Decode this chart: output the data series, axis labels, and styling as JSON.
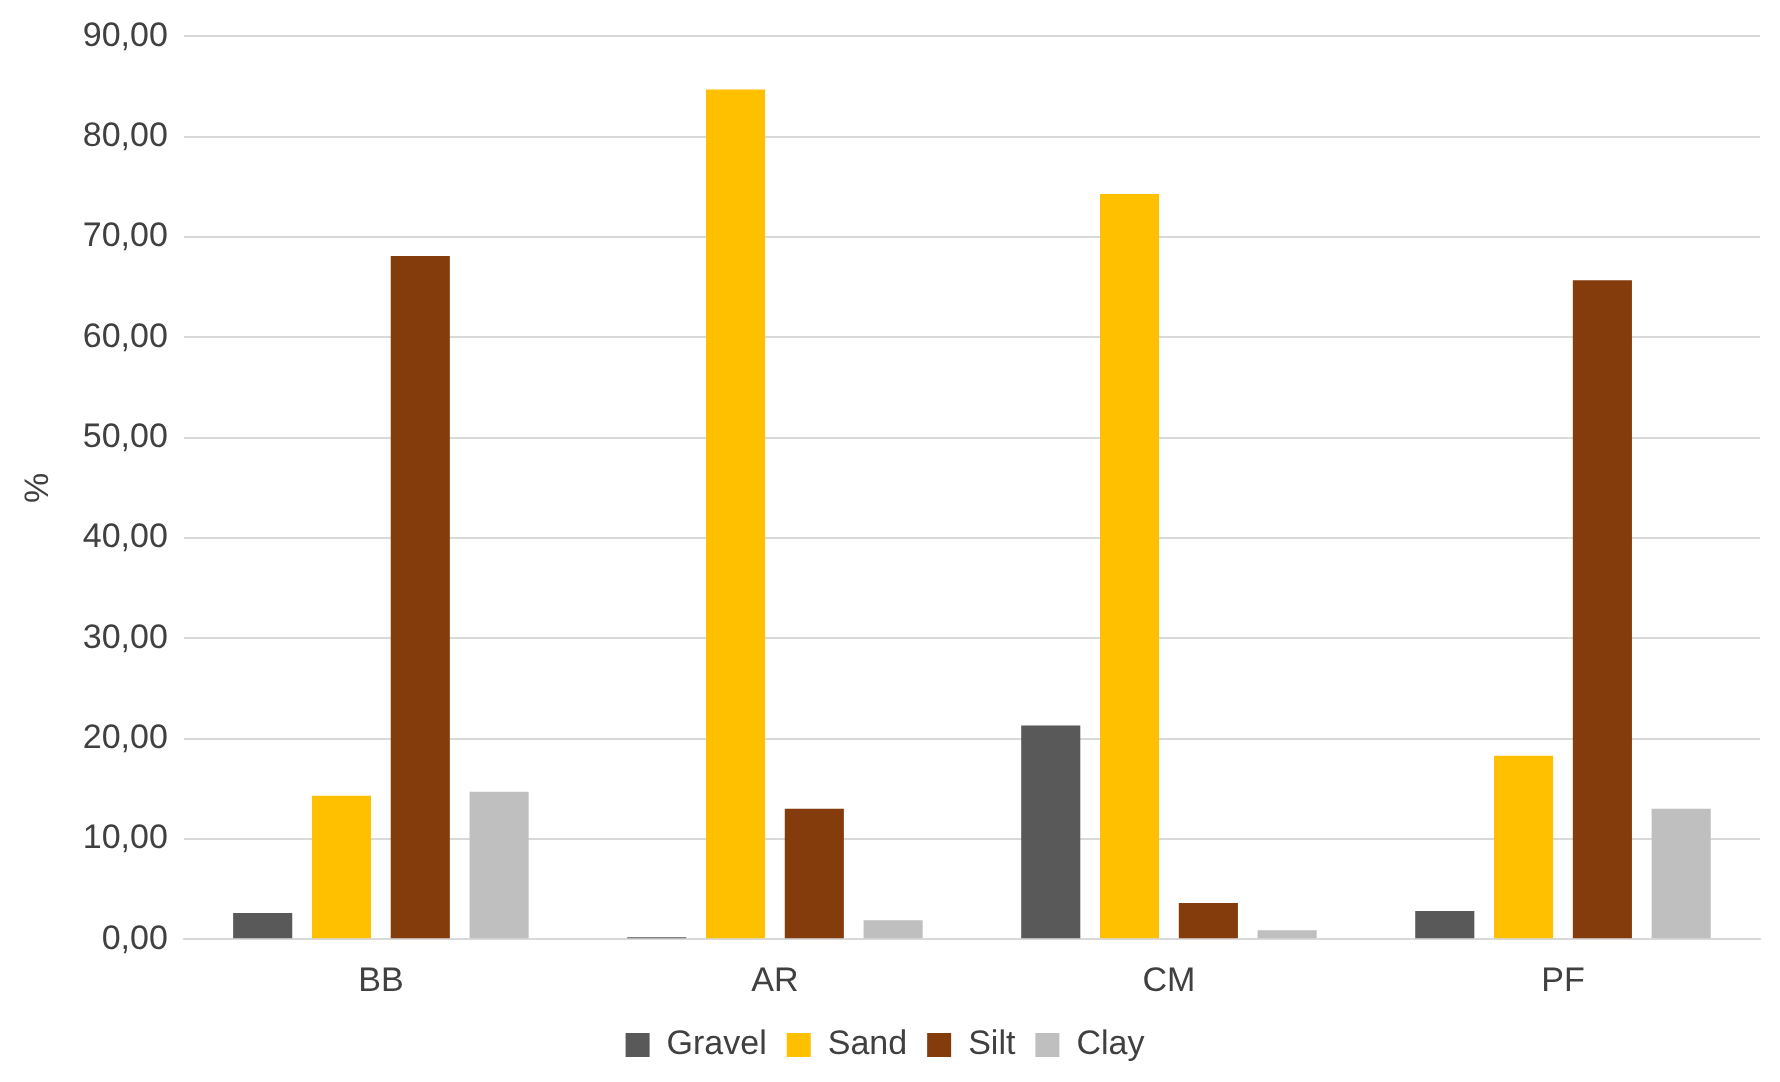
{
  "chart_data": {
    "type": "bar",
    "ylabel": "%",
    "categories": [
      "BB",
      "AR",
      "CM",
      "PF"
    ],
    "series": [
      {
        "name": "Gravel",
        "color": "#595959",
        "values": [
          2.6,
          0.2,
          21.3,
          2.8
        ]
      },
      {
        "name": "Sand",
        "color": "#ffc000",
        "values": [
          14.3,
          84.7,
          74.3,
          18.3
        ]
      },
      {
        "name": "Silt",
        "color": "#843c0c",
        "values": [
          68.1,
          13.0,
          3.6,
          65.7
        ]
      },
      {
        "name": "Clay",
        "color": "#bfbfbf",
        "values": [
          14.7,
          1.9,
          0.9,
          13.0
        ]
      }
    ],
    "ylim": [
      0,
      90
    ],
    "yticks": [
      {
        "value": 0,
        "label": "0,00"
      },
      {
        "value": 10,
        "label": "10,00"
      },
      {
        "value": 20,
        "label": "20,00"
      },
      {
        "value": 30,
        "label": "30,00"
      },
      {
        "value": 40,
        "label": "40,00"
      },
      {
        "value": 50,
        "label": "50,00"
      },
      {
        "value": 60,
        "label": "60,00"
      },
      {
        "value": 70,
        "label": "70,00"
      },
      {
        "value": 80,
        "label": "80,00"
      },
      {
        "value": 90,
        "label": "90,00"
      }
    ],
    "grid": "y",
    "legend": "bottom"
  }
}
